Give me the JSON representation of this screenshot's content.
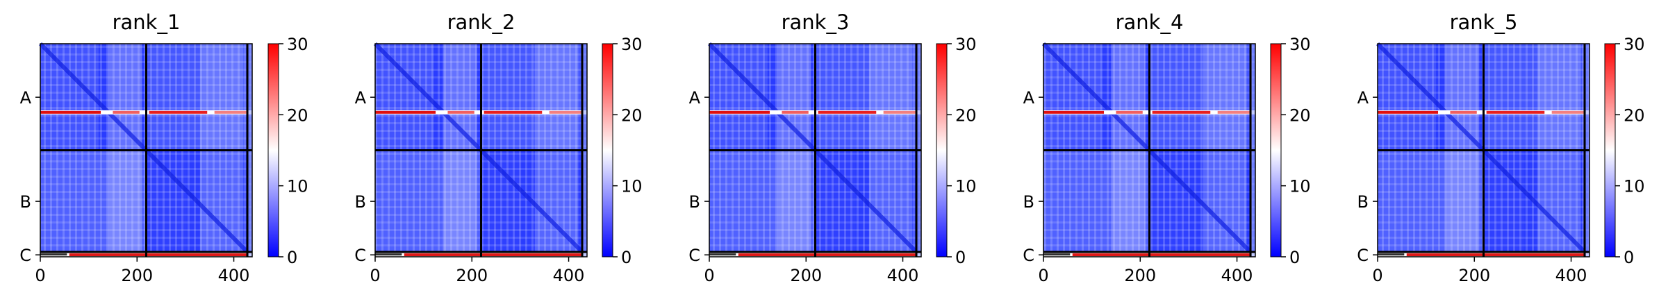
{
  "chart_data": {
    "type": "heatmap",
    "colormap": [
      "#0000ff",
      "#ffffff",
      "#ff0000"
    ],
    "colorbar": {
      "range": [
        0,
        30
      ],
      "ticks": [
        0,
        10,
        20,
        30
      ]
    },
    "x_ticks": [
      0,
      200,
      400
    ],
    "xlim": [
      0,
      438
    ],
    "chain_boundaries": [
      219,
      428
    ],
    "chain_labels": [
      {
        "label": "A",
        "center": 110
      },
      {
        "label": "B",
        "center": 324
      },
      {
        "label": "C",
        "center": 434
      }
    ],
    "panels": [
      {
        "title": "rank_1"
      },
      {
        "title": "rank_2"
      },
      {
        "title": "rank_3"
      },
      {
        "title": "rank_4"
      },
      {
        "title": "rank_5"
      }
    ]
  }
}
